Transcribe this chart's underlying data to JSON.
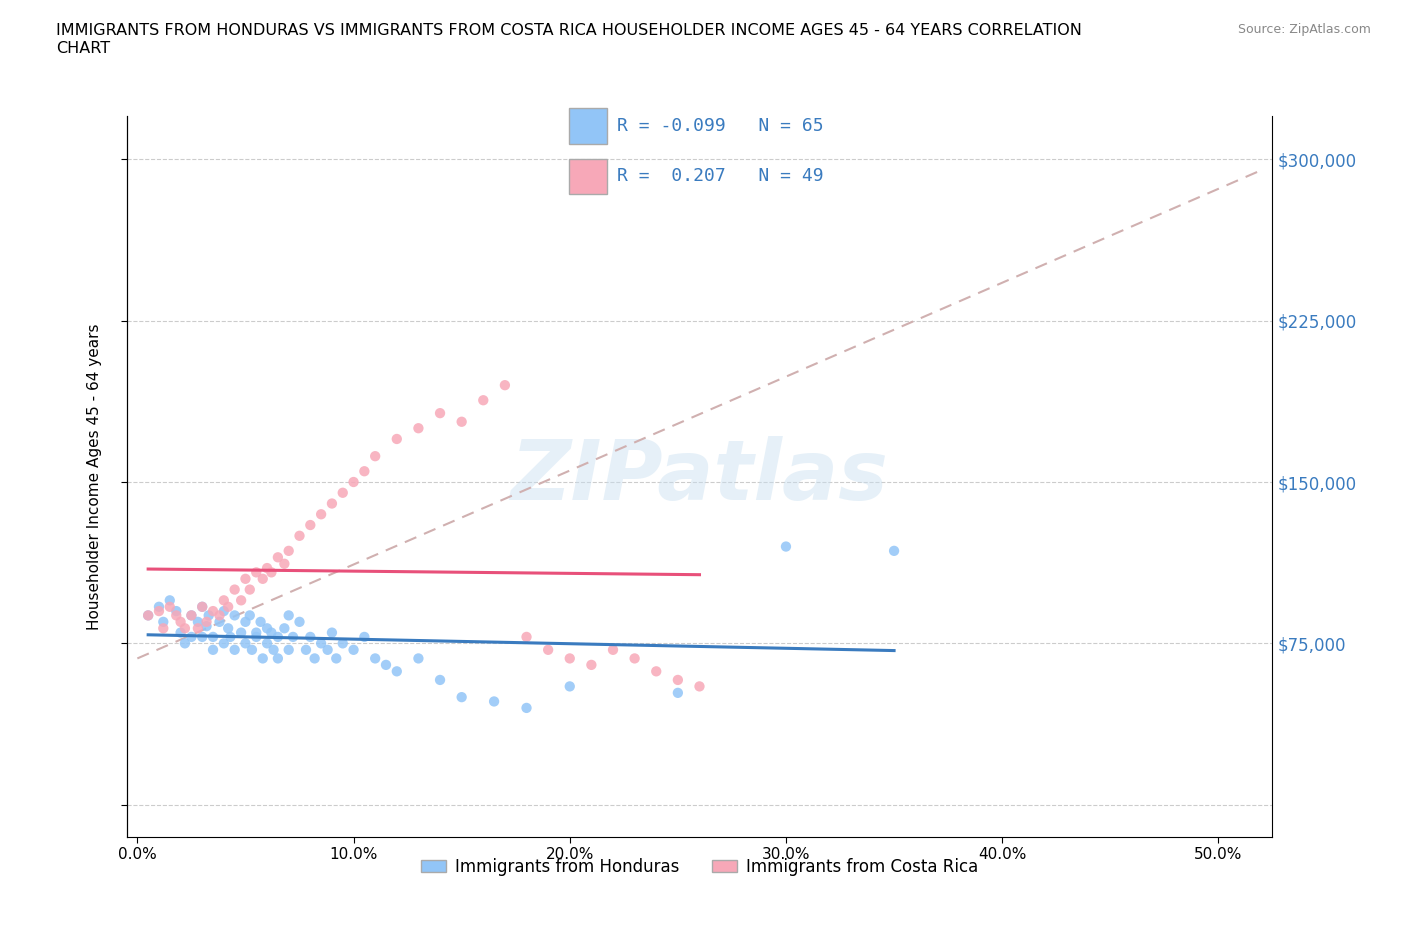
{
  "title": "IMMIGRANTS FROM HONDURAS VS IMMIGRANTS FROM COSTA RICA HOUSEHOLDER INCOME AGES 45 - 64 YEARS CORRELATION\nCHART",
  "source": "Source: ZipAtlas.com",
  "ylabel": "Householder Income Ages 45 - 64 years",
  "x_ticks": [
    0.0,
    0.1,
    0.2,
    0.3,
    0.4,
    0.5
  ],
  "x_tick_labels": [
    "0.0%",
    "10.0%",
    "20.0%",
    "30.0%",
    "40.0%",
    "50.0%"
  ],
  "y_ticks": [
    0,
    75000,
    150000,
    225000,
    300000
  ],
  "y_tick_labels": [
    "",
    "$75,000",
    "$150,000",
    "$225,000",
    "$300,000"
  ],
  "xlim": [
    -0.005,
    0.525
  ],
  "ylim": [
    -15000,
    320000
  ],
  "honduras_color": "#92c5f7",
  "costa_rica_color": "#f7a8b8",
  "honduras_line_color": "#3a7bbf",
  "costa_rica_line_color": "#e8507a",
  "trend_dash_color": "#d0b0b0",
  "R_honduras": -0.099,
  "N_honduras": 65,
  "R_costa_rica": 0.207,
  "N_costa_rica": 49,
  "watermark": "ZIPatlas",
  "legend_label_honduras": "Immigrants from Honduras",
  "legend_label_costa_rica": "Immigrants from Costa Rica",
  "honduras_x": [
    0.005,
    0.01,
    0.012,
    0.015,
    0.018,
    0.02,
    0.022,
    0.025,
    0.025,
    0.028,
    0.03,
    0.03,
    0.032,
    0.033,
    0.035,
    0.035,
    0.038,
    0.04,
    0.04,
    0.042,
    0.043,
    0.045,
    0.045,
    0.048,
    0.05,
    0.05,
    0.052,
    0.053,
    0.055,
    0.055,
    0.057,
    0.058,
    0.06,
    0.06,
    0.062,
    0.063,
    0.065,
    0.065,
    0.068,
    0.07,
    0.07,
    0.072,
    0.075,
    0.078,
    0.08,
    0.082,
    0.085,
    0.088,
    0.09,
    0.092,
    0.095,
    0.1,
    0.105,
    0.11,
    0.115,
    0.12,
    0.13,
    0.14,
    0.15,
    0.165,
    0.18,
    0.2,
    0.25,
    0.3,
    0.35
  ],
  "honduras_y": [
    88000,
    92000,
    85000,
    95000,
    90000,
    80000,
    75000,
    88000,
    78000,
    85000,
    92000,
    78000,
    83000,
    88000,
    78000,
    72000,
    85000,
    90000,
    75000,
    82000,
    78000,
    88000,
    72000,
    80000,
    85000,
    75000,
    88000,
    72000,
    80000,
    78000,
    85000,
    68000,
    82000,
    75000,
    80000,
    72000,
    78000,
    68000,
    82000,
    88000,
    72000,
    78000,
    85000,
    72000,
    78000,
    68000,
    75000,
    72000,
    80000,
    68000,
    75000,
    72000,
    78000,
    68000,
    65000,
    62000,
    68000,
    58000,
    50000,
    48000,
    45000,
    55000,
    52000,
    120000,
    118000
  ],
  "costa_rica_x": [
    0.005,
    0.01,
    0.012,
    0.015,
    0.018,
    0.02,
    0.022,
    0.025,
    0.028,
    0.03,
    0.032,
    0.035,
    0.038,
    0.04,
    0.042,
    0.045,
    0.048,
    0.05,
    0.052,
    0.055,
    0.058,
    0.06,
    0.062,
    0.065,
    0.068,
    0.07,
    0.075,
    0.08,
    0.085,
    0.09,
    0.095,
    0.1,
    0.105,
    0.11,
    0.12,
    0.13,
    0.14,
    0.15,
    0.16,
    0.17,
    0.18,
    0.19,
    0.2,
    0.21,
    0.22,
    0.23,
    0.24,
    0.25,
    0.26
  ],
  "costa_rica_y": [
    88000,
    90000,
    82000,
    92000,
    88000,
    85000,
    82000,
    88000,
    82000,
    92000,
    85000,
    90000,
    88000,
    95000,
    92000,
    100000,
    95000,
    105000,
    100000,
    108000,
    105000,
    110000,
    108000,
    115000,
    112000,
    118000,
    125000,
    130000,
    135000,
    140000,
    145000,
    150000,
    155000,
    162000,
    170000,
    175000,
    182000,
    178000,
    188000,
    195000,
    78000,
    72000,
    68000,
    65000,
    72000,
    68000,
    62000,
    58000,
    55000
  ],
  "dashed_line_x": [
    0.0,
    0.52
  ],
  "dashed_line_y": [
    68000,
    295000
  ]
}
